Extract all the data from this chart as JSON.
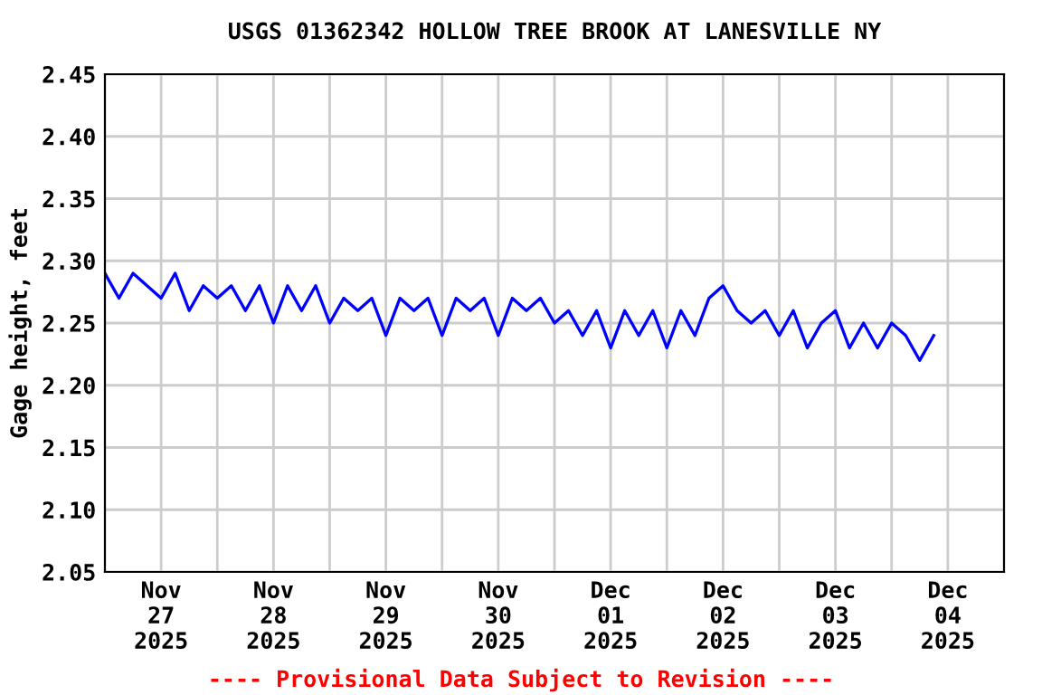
{
  "chart_data": {
    "type": "line",
    "title": "USGS 01362342 HOLLOW TREE BROOK AT LANESVILLE NY",
    "ylabel": "Gage height, feet",
    "annotations": [
      "---- Provisional Data Subject to Revision ----"
    ],
    "x": [
      "2025-11-27T00:00",
      "2025-11-27T03:00",
      "2025-11-27T06:00",
      "2025-11-27T09:00",
      "2025-11-27T12:00",
      "2025-11-27T15:00",
      "2025-11-27T18:00",
      "2025-11-27T21:00",
      "2025-11-28T00:00",
      "2025-11-28T03:00",
      "2025-11-28T06:00",
      "2025-11-28T09:00",
      "2025-11-28T12:00",
      "2025-11-28T15:00",
      "2025-11-28T18:00",
      "2025-11-28T21:00",
      "2025-11-29T00:00",
      "2025-11-29T03:00",
      "2025-11-29T06:00",
      "2025-11-29T09:00",
      "2025-11-29T12:00",
      "2025-11-29T15:00",
      "2025-11-29T18:00",
      "2025-11-29T21:00",
      "2025-11-30T00:00",
      "2025-11-30T03:00",
      "2025-11-30T06:00",
      "2025-11-30T09:00",
      "2025-11-30T12:00",
      "2025-11-30T15:00",
      "2025-11-30T18:00",
      "2025-11-30T21:00",
      "2025-12-01T00:00",
      "2025-12-01T03:00",
      "2025-12-01T06:00",
      "2025-12-01T09:00",
      "2025-12-01T12:00",
      "2025-12-01T15:00",
      "2025-12-01T18:00",
      "2025-12-01T21:00",
      "2025-12-02T00:00",
      "2025-12-02T03:00",
      "2025-12-02T06:00",
      "2025-12-02T09:00",
      "2025-12-02T12:00",
      "2025-12-02T15:00",
      "2025-12-02T18:00",
      "2025-12-02T21:00",
      "2025-12-03T00:00",
      "2025-12-03T03:00",
      "2025-12-03T06:00",
      "2025-12-03T09:00",
      "2025-12-03T12:00",
      "2025-12-03T15:00",
      "2025-12-03T18:00",
      "2025-12-03T21:00",
      "2025-12-04T00:00",
      "2025-12-04T03:00",
      "2025-12-04T06:00",
      "2025-12-04T09:00"
    ],
    "series": [
      {
        "color": "#0000ff",
        "values": [
          2.29,
          2.27,
          2.29,
          2.28,
          2.27,
          2.29,
          2.26,
          2.28,
          2.27,
          2.28,
          2.26,
          2.28,
          2.25,
          2.28,
          2.26,
          2.28,
          2.25,
          2.27,
          2.26,
          2.27,
          2.24,
          2.27,
          2.26,
          2.27,
          2.24,
          2.27,
          2.26,
          2.27,
          2.24,
          2.27,
          2.26,
          2.27,
          2.25,
          2.26,
          2.24,
          2.26,
          2.23,
          2.26,
          2.24,
          2.26,
          2.23,
          2.26,
          2.24,
          2.27,
          2.28,
          2.26,
          2.25,
          2.26,
          2.24,
          2.26,
          2.23,
          2.25,
          2.26,
          2.23,
          2.25,
          2.23,
          2.25,
          2.24,
          2.22,
          2.24
        ]
      }
    ],
    "xlim": [
      "2025-11-27T00:00",
      "2025-12-05T00:00"
    ],
    "xticks": [
      {
        "value": "2025-11-27T12:00",
        "label": "Nov\n27\n2025"
      },
      {
        "value": "2025-11-28T12:00",
        "label": "Nov\n28\n2025"
      },
      {
        "value": "2025-11-29T12:00",
        "label": "Nov\n29\n2025"
      },
      {
        "value": "2025-11-30T12:00",
        "label": "Nov\n30\n2025"
      },
      {
        "value": "2025-12-01T12:00",
        "label": "Dec\n01\n2025"
      },
      {
        "value": "2025-12-02T12:00",
        "label": "Dec\n02\n2025"
      },
      {
        "value": "2025-12-03T12:00",
        "label": "Dec\n03\n2025"
      },
      {
        "value": "2025-12-04T12:00",
        "label": "Dec\n04\n2025"
      },
      {
        "value": "2025-11-28T00:00",
        "label": null
      },
      {
        "value": "2025-11-29T00:00",
        "label": null
      },
      {
        "value": "2025-11-30T00:00",
        "label": null
      },
      {
        "value": "2025-12-01T00:00",
        "label": null
      },
      {
        "value": "2025-12-02T00:00",
        "label": null
      },
      {
        "value": "2025-12-03T00:00",
        "label": null
      },
      {
        "value": "2025-12-04T00:00",
        "label": null
      }
    ],
    "ylim": [
      2.05,
      2.45
    ],
    "yticks": [
      {
        "value": 2.05,
        "label": "2.05"
      },
      {
        "value": 2.1,
        "label": "2.10"
      },
      {
        "value": 2.15,
        "label": "2.15"
      },
      {
        "value": 2.2,
        "label": "2.20"
      },
      {
        "value": 2.25,
        "label": "2.25"
      },
      {
        "value": 2.3,
        "label": "2.30"
      },
      {
        "value": 2.35,
        "label": "2.35"
      },
      {
        "value": 2.4,
        "label": "2.40"
      },
      {
        "value": 2.45,
        "label": "2.45"
      }
    ],
    "grid": true,
    "line_style": "solid",
    "marker": "none"
  }
}
